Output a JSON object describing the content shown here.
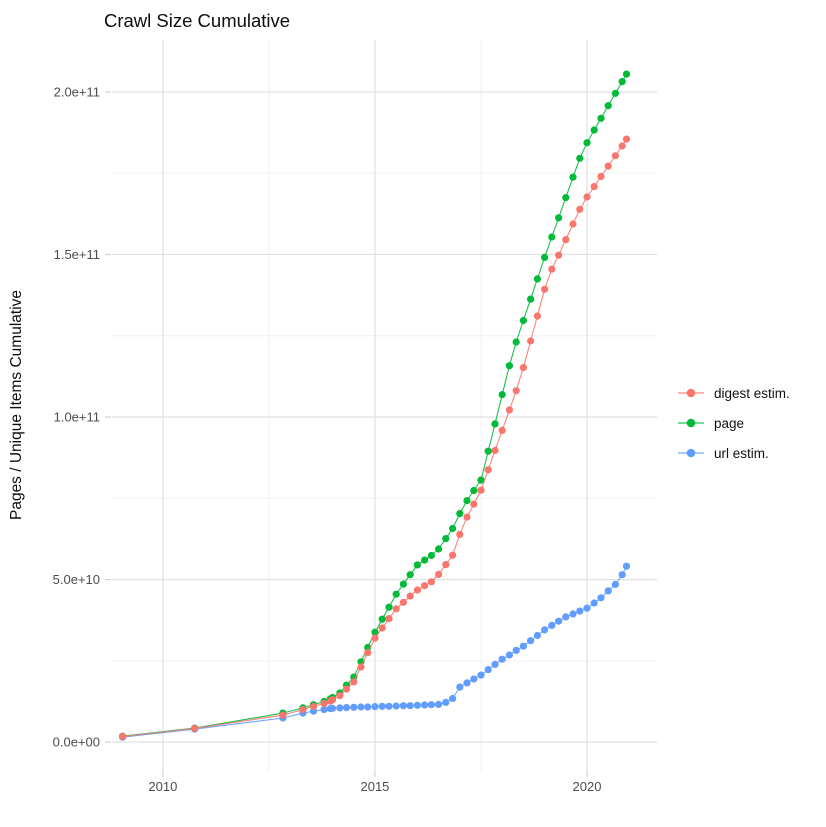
{
  "title": "Crawl Size Cumulative",
  "chart_data": {
    "type": "scatter",
    "title": "Crawl Size Cumulative",
    "xlabel": "",
    "ylabel": "Pages / Unique Items Cumulative",
    "y_values_unit": "billions (1e9 items)",
    "xlim": [
      2008.8,
      2021.65
    ],
    "ylim_billions": [
      -8.9,
      216
    ],
    "x_major_ticks": [
      2010,
      2015,
      2020
    ],
    "x_tick_labels": [
      "2010",
      "2015",
      "2020"
    ],
    "x_minor_ticks": [
      2012.5,
      2017.5
    ],
    "y_major_ticks_billions": [
      0,
      50,
      100,
      150,
      200
    ],
    "y_tick_labels": [
      "0.0e+00",
      "5.0e+10",
      "1.0e+11",
      "1.5e+11",
      "2.0e+11"
    ],
    "y_minor_ticks_billions": [
      25,
      75,
      125,
      175
    ],
    "grid": true,
    "legend_position": "right",
    "series": [
      {
        "name": "digest estim.",
        "color": "#F8766D",
        "points": [
          [
            2009.05,
            1.7
          ],
          [
            2010.75,
            4.2
          ],
          [
            2012.83,
            8.3
          ],
          [
            2013.3,
            10.0
          ],
          [
            2013.55,
            11.0
          ],
          [
            2013.8,
            11.9
          ],
          [
            2013.95,
            12.6
          ],
          [
            2014.0,
            13.0
          ],
          [
            2014.17,
            14.3
          ],
          [
            2014.33,
            16.3
          ],
          [
            2014.5,
            18.5
          ],
          [
            2014.67,
            23.1
          ],
          [
            2014.83,
            27.5
          ],
          [
            2015.0,
            32.0
          ],
          [
            2015.17,
            35.1
          ],
          [
            2015.33,
            38.0
          ],
          [
            2015.5,
            41.0
          ],
          [
            2015.67,
            43.0
          ],
          [
            2015.83,
            44.9
          ],
          [
            2016.0,
            46.8
          ],
          [
            2016.17,
            48.1
          ],
          [
            2016.33,
            49.3
          ],
          [
            2016.5,
            51.6
          ],
          [
            2016.67,
            54.6
          ],
          [
            2016.83,
            57.5
          ],
          [
            2017.0,
            63.9
          ],
          [
            2017.17,
            69.2
          ],
          [
            2017.33,
            73.2
          ],
          [
            2017.5,
            77.5
          ],
          [
            2017.67,
            83.8
          ],
          [
            2017.83,
            89.7
          ],
          [
            2018.0,
            95.9
          ],
          [
            2018.17,
            102.2
          ],
          [
            2018.33,
            108.1
          ],
          [
            2018.5,
            115.2
          ],
          [
            2018.67,
            123.4
          ],
          [
            2018.83,
            131.1
          ],
          [
            2019.0,
            139.3
          ],
          [
            2019.17,
            145.5
          ],
          [
            2019.33,
            149.8
          ],
          [
            2019.5,
            154.6
          ],
          [
            2019.67,
            159.4
          ],
          [
            2019.83,
            163.9
          ],
          [
            2020.0,
            167.7
          ],
          [
            2020.17,
            170.9
          ],
          [
            2020.33,
            174.0
          ],
          [
            2020.5,
            177.2
          ],
          [
            2020.67,
            180.4
          ],
          [
            2020.83,
            183.4
          ],
          [
            2020.93,
            185.5
          ]
        ]
      },
      {
        "name": "page",
        "color": "#00BA38",
        "points": [
          [
            2009.05,
            1.8
          ],
          [
            2010.75,
            4.3
          ],
          [
            2012.83,
            8.9
          ],
          [
            2013.3,
            10.5
          ],
          [
            2013.55,
            11.5
          ],
          [
            2013.8,
            12.5
          ],
          [
            2013.95,
            13.3
          ],
          [
            2014.0,
            13.7
          ],
          [
            2014.17,
            15.1
          ],
          [
            2014.33,
            17.5
          ],
          [
            2014.5,
            20.0
          ],
          [
            2014.67,
            24.7
          ],
          [
            2014.83,
            29.1
          ],
          [
            2015.0,
            33.8
          ],
          [
            2015.17,
            37.8
          ],
          [
            2015.33,
            41.5
          ],
          [
            2015.5,
            45.5
          ],
          [
            2015.67,
            48.6
          ],
          [
            2015.83,
            51.5
          ],
          [
            2016.0,
            54.5
          ],
          [
            2016.17,
            56.0
          ],
          [
            2016.33,
            57.4
          ],
          [
            2016.5,
            59.4
          ],
          [
            2016.67,
            62.6
          ],
          [
            2016.83,
            65.7
          ],
          [
            2017.0,
            70.3
          ],
          [
            2017.17,
            74.3
          ],
          [
            2017.33,
            77.4
          ],
          [
            2017.5,
            80.6
          ],
          [
            2017.67,
            89.5
          ],
          [
            2017.83,
            97.9
          ],
          [
            2018.0,
            106.9
          ],
          [
            2018.17,
            115.8
          ],
          [
            2018.33,
            123.1
          ],
          [
            2018.5,
            129.7
          ],
          [
            2018.67,
            136.3
          ],
          [
            2018.83,
            142.5
          ],
          [
            2019.0,
            149.1
          ],
          [
            2019.17,
            155.4
          ],
          [
            2019.33,
            161.3
          ],
          [
            2019.5,
            167.5
          ],
          [
            2019.67,
            173.8
          ],
          [
            2019.83,
            179.6
          ],
          [
            2020.0,
            184.4
          ],
          [
            2020.17,
            188.3
          ],
          [
            2020.33,
            191.9
          ],
          [
            2020.5,
            195.8
          ],
          [
            2020.67,
            199.6
          ],
          [
            2020.83,
            203.2
          ],
          [
            2020.93,
            205.5
          ]
        ]
      },
      {
        "name": "url estim.",
        "color": "#619CFF",
        "points": [
          [
            2009.05,
            1.5
          ],
          [
            2010.75,
            4.0
          ],
          [
            2012.83,
            7.4
          ],
          [
            2013.3,
            8.9
          ],
          [
            2013.55,
            9.5
          ],
          [
            2013.8,
            10.0
          ],
          [
            2013.95,
            10.3
          ],
          [
            2014.0,
            10.4
          ],
          [
            2014.17,
            10.5
          ],
          [
            2014.33,
            10.6
          ],
          [
            2014.5,
            10.7
          ],
          [
            2014.67,
            10.8
          ],
          [
            2014.83,
            10.8
          ],
          [
            2015.0,
            10.9
          ],
          [
            2015.17,
            11.0
          ],
          [
            2015.33,
            11.0
          ],
          [
            2015.5,
            11.1
          ],
          [
            2015.67,
            11.2
          ],
          [
            2015.83,
            11.2
          ],
          [
            2016.0,
            11.3
          ],
          [
            2016.17,
            11.4
          ],
          [
            2016.33,
            11.5
          ],
          [
            2016.5,
            11.6
          ],
          [
            2016.67,
            12.2
          ],
          [
            2016.83,
            13.4
          ],
          [
            2017.0,
            16.9
          ],
          [
            2017.17,
            18.2
          ],
          [
            2017.33,
            19.4
          ],
          [
            2017.5,
            20.6
          ],
          [
            2017.67,
            22.3
          ],
          [
            2017.83,
            23.9
          ],
          [
            2018.0,
            25.5
          ],
          [
            2018.17,
            26.8
          ],
          [
            2018.33,
            28.2
          ],
          [
            2018.5,
            29.5
          ],
          [
            2018.67,
            31.2
          ],
          [
            2018.83,
            32.8
          ],
          [
            2019.0,
            34.5
          ],
          [
            2019.17,
            35.9
          ],
          [
            2019.33,
            37.2
          ],
          [
            2019.5,
            38.5
          ],
          [
            2019.67,
            39.4
          ],
          [
            2019.83,
            40.3
          ],
          [
            2020.0,
            41.2
          ],
          [
            2020.17,
            42.8
          ],
          [
            2020.33,
            44.4
          ],
          [
            2020.5,
            46.5
          ],
          [
            2020.67,
            48.5
          ],
          [
            2020.83,
            51.5
          ],
          [
            2020.93,
            54.1
          ]
        ]
      }
    ]
  },
  "legend": {
    "items": [
      {
        "label": "digest estim.",
        "color": "#F8766D"
      },
      {
        "label": "page",
        "color": "#00BA38"
      },
      {
        "label": "url estim.",
        "color": "#619CFF"
      }
    ]
  },
  "style": {
    "grid_major_color": "#E2E2E2",
    "grid_minor_color": "#F0F0F0",
    "tick_color": "#C9C9C9",
    "tick_label_color": "#4D4D4D",
    "text_color": "#0d0d0d"
  }
}
